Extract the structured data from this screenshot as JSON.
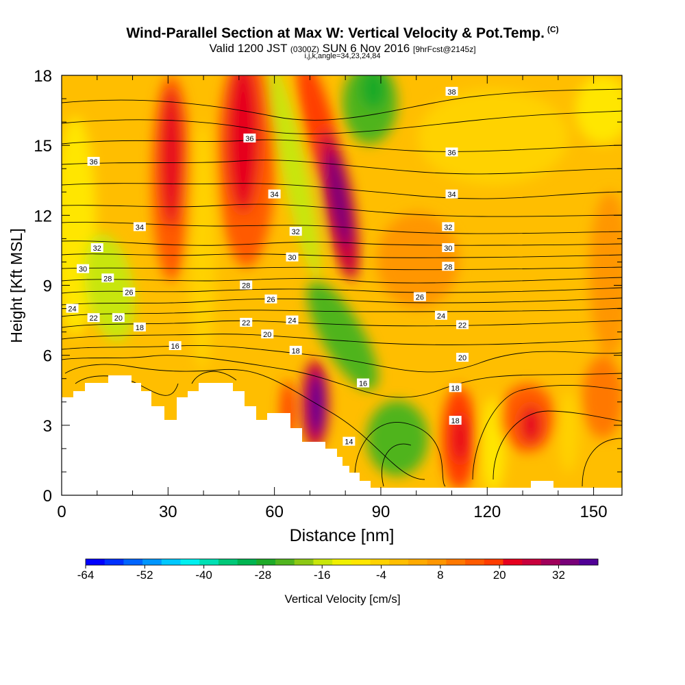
{
  "chart_data": {
    "type": "heatmap",
    "title": "Wind-Parallel Section at Max W: Vertical Velocity & Pot.Temp.",
    "title_mark": "(C)",
    "subtitle_main": "Valid 1200 JST",
    "subtitle_z": "(0300Z)",
    "subtitle_date": "SUN 6 Nov 2016",
    "subtitle_fcst": "[9hrFcst@2145z]",
    "subtitle2": "i,j,k,angle=34,23,24,84",
    "xlabel": "Distance [nm]",
    "ylabel": "Height [Kft MSL]",
    "xlim": [
      0,
      158
    ],
    "ylim": [
      0,
      18
    ],
    "xticks": [
      "0",
      "30",
      "60",
      "90",
      "120",
      "150"
    ],
    "yticks": [
      "0",
      "3",
      "6",
      "9",
      "12",
      "15",
      "18"
    ],
    "colorbar": {
      "label": "Vertical Velocity [cm/s]",
      "ticks": [
        "-64",
        "-52",
        "-40",
        "-28",
        "-16",
        "-4",
        "8",
        "20",
        "32"
      ],
      "levels": [
        -64,
        -60,
        -56,
        -52,
        -48,
        -44,
        -40,
        -36,
        -32,
        -28,
        -24,
        -20,
        -16,
        -12,
        -8,
        -4,
        0,
        4,
        8,
        12,
        16,
        20,
        24,
        28,
        32,
        36,
        40
      ],
      "colors": [
        "#0000ff",
        "#0030ff",
        "#0064ff",
        "#0096ff",
        "#00c8ff",
        "#00f0f0",
        "#00e0b4",
        "#00c878",
        "#00b450",
        "#1eaa28",
        "#50b41e",
        "#8cc814",
        "#c8e60a",
        "#f0f000",
        "#ffe600",
        "#ffd200",
        "#ffbe00",
        "#ffaa00",
        "#ff9600",
        "#ff7800",
        "#ff5a00",
        "#ff3c00",
        "#e6001e",
        "#c8003c",
        "#a0005a",
        "#780078",
        "#500096"
      ]
    },
    "theta_labels": [
      {
        "x": 9,
        "y": 14.3,
        "t": "36"
      },
      {
        "x": 53,
        "y": 15.3,
        "t": "36"
      },
      {
        "x": 110,
        "y": 14.7,
        "t": "36"
      },
      {
        "x": 110,
        "y": 17.3,
        "t": "38"
      },
      {
        "x": 22,
        "y": 11.5,
        "t": "34"
      },
      {
        "x": 60,
        "y": 12.9,
        "t": "34"
      },
      {
        "x": 110,
        "y": 12.9,
        "t": "34"
      },
      {
        "x": 66,
        "y": 11.3,
        "t": "32"
      },
      {
        "x": 109,
        "y": 11.5,
        "t": "32"
      },
      {
        "x": 10,
        "y": 10.6,
        "t": "32"
      },
      {
        "x": 6,
        "y": 9.7,
        "t": "30"
      },
      {
        "x": 65,
        "y": 10.2,
        "t": "30"
      },
      {
        "x": 109,
        "y": 10.6,
        "t": "30"
      },
      {
        "x": 109,
        "y": 9.8,
        "t": "28"
      },
      {
        "x": 13,
        "y": 9.3,
        "t": "28"
      },
      {
        "x": 52,
        "y": 9.0,
        "t": "28"
      },
      {
        "x": 19,
        "y": 8.7,
        "t": "26"
      },
      {
        "x": 59,
        "y": 8.4,
        "t": "26"
      },
      {
        "x": 101,
        "y": 8.5,
        "t": "26"
      },
      {
        "x": 3,
        "y": 8.0,
        "t": "24"
      },
      {
        "x": 65,
        "y": 7.5,
        "t": "24"
      },
      {
        "x": 107,
        "y": 7.7,
        "t": "24"
      },
      {
        "x": 9,
        "y": 7.6,
        "t": "22"
      },
      {
        "x": 52,
        "y": 7.4,
        "t": "22"
      },
      {
        "x": 113,
        "y": 7.3,
        "t": "22"
      },
      {
        "x": 16,
        "y": 7.6,
        "t": "20"
      },
      {
        "x": 58,
        "y": 6.9,
        "t": "20"
      },
      {
        "x": 113,
        "y": 5.9,
        "t": "20"
      },
      {
        "x": 22,
        "y": 7.2,
        "t": "18"
      },
      {
        "x": 66,
        "y": 6.2,
        "t": "18"
      },
      {
        "x": 111,
        "y": 4.6,
        "t": "18"
      },
      {
        "x": 111,
        "y": 3.2,
        "t": "18"
      },
      {
        "x": 32,
        "y": 6.4,
        "t": "16"
      },
      {
        "x": 85,
        "y": 4.8,
        "t": "16"
      },
      {
        "x": 81,
        "y": 2.3,
        "t": "14"
      }
    ]
  }
}
